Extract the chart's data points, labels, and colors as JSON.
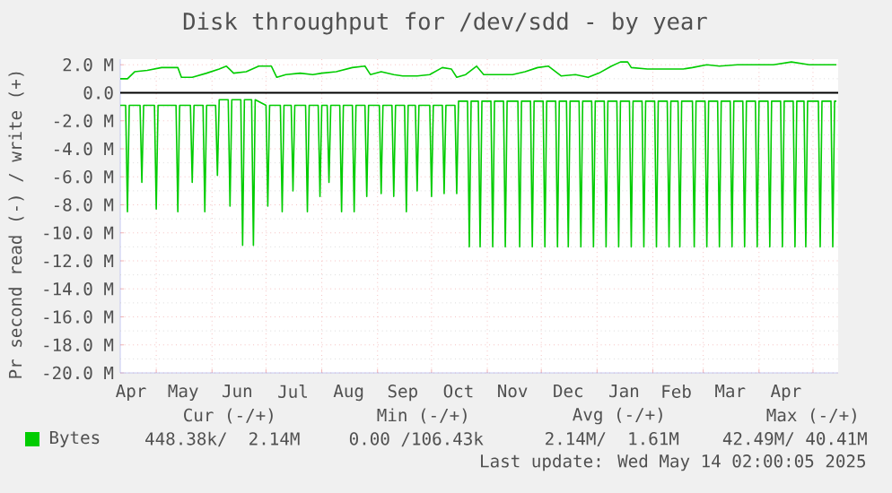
{
  "chart_data": {
    "type": "line",
    "title": "Disk throughput for /dev/sdd - by year",
    "ylabel": "Pr second read (-) / write (+)",
    "xlim": [
      "2024-04-11",
      "2025-05-15"
    ],
    "ylim": [
      -20,
      2.4
    ],
    "xticks": [
      {
        "value": "2024-05-01",
        "label": null
      },
      {
        "value": "2024-06-01",
        "label": null
      },
      {
        "value": "2024-07-01",
        "label": null
      },
      {
        "value": "2024-08-01",
        "label": null
      },
      {
        "value": "2024-09-01",
        "label": null
      },
      {
        "value": "2024-10-01",
        "label": null
      },
      {
        "value": "2024-11-01",
        "label": null
      },
      {
        "value": "2024-12-01",
        "label": null
      },
      {
        "value": "2025-01-01",
        "label": null
      },
      {
        "value": "2025-02-01",
        "label": null
      },
      {
        "value": "2025-03-01",
        "label": null
      },
      {
        "value": "2025-04-01",
        "label": null
      },
      {
        "value": "2025-05-01",
        "label": null
      },
      {
        "value": "2024-04-17",
        "label": "Apr"
      },
      {
        "value": "2024-05-16",
        "label": "May"
      },
      {
        "value": "2024-06-15",
        "label": "Jun"
      },
      {
        "value": "2024-07-16",
        "label": "Jul"
      },
      {
        "value": "2024-08-16",
        "label": "Aug"
      },
      {
        "value": "2024-09-15",
        "label": "Sep"
      },
      {
        "value": "2024-10-16",
        "label": "Oct"
      },
      {
        "value": "2024-11-15",
        "label": "Nov"
      },
      {
        "value": "2024-12-16",
        "label": "Dec"
      },
      {
        "value": "2025-01-16",
        "label": "Jan"
      },
      {
        "value": "2025-02-14",
        "label": "Feb"
      },
      {
        "value": "2025-03-16",
        "label": "Mar"
      },
      {
        "value": "2025-04-16",
        "label": "Apr"
      }
    ],
    "yticks": [
      {
        "value": -20,
        "label": "-20.0 M"
      },
      {
        "value": -18,
        "label": "-18.0 M"
      },
      {
        "value": -16,
        "label": "-16.0 M"
      },
      {
        "value": -14,
        "label": "-14.0 M"
      },
      {
        "value": -12,
        "label": "-12.0 M"
      },
      {
        "value": -10,
        "label": "-10.0 M"
      },
      {
        "value": -8,
        "label": "-8.0 M"
      },
      {
        "value": -6,
        "label": "-6.0 M"
      },
      {
        "value": -4,
        "label": "-4.0 M"
      },
      {
        "value": -2,
        "label": "-2.0 M"
      },
      {
        "value": 0,
        "label": "0.0"
      },
      {
        "value": 2,
        "label": "2.0 M"
      },
      {
        "value": -19,
        "label": null
      },
      {
        "value": -17,
        "label": null
      },
      {
        "value": -15,
        "label": null
      },
      {
        "value": -13,
        "label": null
      },
      {
        "value": -11,
        "label": null
      },
      {
        "value": -9,
        "label": null
      },
      {
        "value": -7,
        "label": null
      },
      {
        "value": -5,
        "label": null
      },
      {
        "value": -3,
        "label": null
      },
      {
        "value": -1,
        "label": null
      },
      {
        "value": 1,
        "label": null
      }
    ],
    "grid": true,
    "legend": "bottom left",
    "ref_lines": [
      {
        "axis": "y",
        "value": 0,
        "color": "#000000"
      }
    ],
    "series": [
      {
        "name": "Bytes",
        "color": "#00cc00",
        "x": [
          "2024-04-11",
          "2024-04-15",
          "2024-04-19",
          "2024-04-26",
          "2024-05-04",
          "2024-05-13",
          "2024-05-15",
          "2024-05-21",
          "2024-05-29",
          "2024-06-05",
          "2024-06-09",
          "2024-06-13",
          "2024-06-20",
          "2024-06-27",
          "2024-07-04",
          "2024-07-07",
          "2024-07-12",
          "2024-07-20",
          "2024-07-27",
          "2024-08-01",
          "2024-08-09",
          "2024-08-18",
          "2024-08-25",
          "2024-08-28",
          "2024-09-03",
          "2024-09-10",
          "2024-09-15",
          "2024-09-23",
          "2024-09-30",
          "2024-10-07",
          "2024-10-12",
          "2024-10-15",
          "2024-10-20",
          "2024-10-26",
          "2024-10-30",
          "2024-11-07",
          "2024-11-15",
          "2024-11-22",
          "2024-11-29",
          "2024-12-05",
          "2024-12-12",
          "2024-12-20",
          "2024-12-27",
          "2025-01-02",
          "2025-01-09",
          "2025-01-14",
          "2025-01-18",
          "2025-01-20",
          "2025-01-29",
          "2025-02-08",
          "2025-02-18",
          "2025-02-23",
          "2025-03-03",
          "2025-03-10",
          "2025-03-20",
          "2025-03-30",
          "2025-04-09",
          "2025-04-19",
          "2025-04-29",
          "2025-05-09",
          "2025-05-14"
        ],
        "values": [
          1.0,
          1.0,
          1.5,
          1.6,
          1.8,
          1.8,
          1.1,
          1.1,
          1.4,
          1.7,
          1.9,
          1.4,
          1.5,
          1.9,
          1.9,
          1.1,
          1.3,
          1.4,
          1.3,
          1.4,
          1.5,
          1.8,
          1.9,
          1.3,
          1.5,
          1.3,
          1.2,
          1.2,
          1.3,
          1.8,
          1.7,
          1.1,
          1.3,
          1.9,
          1.3,
          1.3,
          1.3,
          1.5,
          1.8,
          1.9,
          1.2,
          1.3,
          1.1,
          1.4,
          1.9,
          2.2,
          2.2,
          1.8,
          1.7,
          1.7,
          1.7,
          1.8,
          2.0,
          1.9,
          2.0,
          2.0,
          2.0,
          2.2,
          2.0,
          2.0,
          2.0
        ]
      },
      {
        "color": "#00cc00",
        "x": [
          "2024-04-11",
          "2024-04-14",
          "2024-04-15",
          "2024-04-16",
          "2024-04-22",
          "2024-04-23",
          "2024-04-24",
          "2024-04-30",
          "2024-05-01",
          "2024-05-02",
          "2024-05-12",
          "2024-05-13",
          "2024-05-14",
          "2024-05-20",
          "2024-05-21",
          "2024-05-22",
          "2024-05-27",
          "2024-05-28",
          "2024-05-29",
          "2024-06-03",
          "2024-06-04",
          "2024-06-05",
          "2024-06-10",
          "2024-06-11",
          "2024-06-12",
          "2024-06-17",
          "2024-06-18",
          "2024-06-19",
          "2024-06-23",
          "2024-06-24",
          "2024-06-25",
          "2024-07-01",
          "2024-07-02",
          "2024-07-03",
          "2024-07-09",
          "2024-07-10",
          "2024-07-11",
          "2024-07-15",
          "2024-07-16",
          "2024-07-17",
          "2024-07-23",
          "2024-07-24",
          "2024-07-25",
          "2024-07-30",
          "2024-07-31",
          "2024-08-01",
          "2024-08-04",
          "2024-08-05",
          "2024-08-06",
          "2024-08-11",
          "2024-08-12",
          "2024-08-13",
          "2024-08-18",
          "2024-08-19",
          "2024-08-20",
          "2024-08-25",
          "2024-08-26",
          "2024-08-27",
          "2024-09-02",
          "2024-09-03",
          "2024-09-04",
          "2024-09-09",
          "2024-09-10",
          "2024-09-11",
          "2024-09-16",
          "2024-09-17",
          "2024-09-18",
          "2024-09-22",
          "2024-09-23",
          "2024-09-24",
          "2024-09-30",
          "2024-10-01",
          "2024-10-02",
          "2024-10-07",
          "2024-10-08",
          "2024-10-09",
          "2024-10-14",
          "2024-10-15",
          "2024-10-16",
          "2024-10-21",
          "2024-10-22",
          "2024-10-23",
          "2024-10-27",
          "2024-10-28",
          "2024-10-29",
          "2024-11-03",
          "2024-11-04",
          "2024-11-05",
          "2024-11-10",
          "2024-11-11",
          "2024-11-12",
          "2024-11-18",
          "2024-11-19",
          "2024-11-20",
          "2024-11-25",
          "2024-11-26",
          "2024-11-27",
          "2024-12-02",
          "2024-12-03",
          "2024-12-04",
          "2024-12-09",
          "2024-12-10",
          "2024-12-11",
          "2024-12-15",
          "2024-12-16",
          "2024-12-17",
          "2024-12-22",
          "2024-12-23",
          "2024-12-24",
          "2024-12-29",
          "2024-12-30",
          "2024-12-31",
          "2025-01-05",
          "2025-01-06",
          "2025-01-07",
          "2025-01-12",
          "2025-01-13",
          "2025-01-14",
          "2025-01-19",
          "2025-01-20",
          "2025-01-21",
          "2025-01-26",
          "2025-01-27",
          "2025-01-28",
          "2025-02-02",
          "2025-02-03",
          "2025-02-04",
          "2025-02-09",
          "2025-02-10",
          "2025-02-11",
          "2025-02-15",
          "2025-02-16",
          "2025-02-17",
          "2025-02-23",
          "2025-02-24",
          "2025-02-25",
          "2025-03-02",
          "2025-03-03",
          "2025-03-04",
          "2025-03-09",
          "2025-03-10",
          "2025-03-11",
          "2025-03-16",
          "2025-03-17",
          "2025-03-18",
          "2025-03-23",
          "2025-03-24",
          "2025-03-25",
          "2025-03-30",
          "2025-03-31",
          "2025-04-01",
          "2025-04-06",
          "2025-04-07",
          "2025-04-08",
          "2025-04-13",
          "2025-04-14",
          "2025-04-15",
          "2025-04-20",
          "2025-04-21",
          "2025-04-22",
          "2025-04-26",
          "2025-04-27",
          "2025-04-28",
          "2025-05-04",
          "2025-05-05",
          "2025-05-06",
          "2025-05-11",
          "2025-05-12",
          "2025-05-13",
          "2025-05-14"
        ],
        "values": [
          -0.9,
          -0.9,
          -8.5,
          -0.9,
          -0.9,
          -6.4,
          -0.9,
          -0.9,
          -8.3,
          -0.9,
          -0.9,
          -8.5,
          -0.9,
          -0.9,
          -6.4,
          -0.9,
          -0.9,
          -8.5,
          -0.9,
          -0.9,
          -5.9,
          -0.5,
          -0.5,
          -8.1,
          -0.5,
          -0.5,
          -10.9,
          -0.5,
          -0.5,
          -10.9,
          -0.5,
          -0.9,
          -8.1,
          -0.9,
          -0.9,
          -8.5,
          -0.9,
          -0.9,
          -7.0,
          -0.9,
          -0.9,
          -8.5,
          -0.9,
          -0.9,
          -7.4,
          -0.9,
          -0.9,
          -6.4,
          -0.9,
          -0.9,
          -8.5,
          -0.9,
          -0.9,
          -8.5,
          -0.9,
          -0.9,
          -7.4,
          -0.9,
          -0.9,
          -7.2,
          -0.9,
          -0.9,
          -7.4,
          -0.9,
          -0.9,
          -8.5,
          -0.9,
          -0.9,
          -7.0,
          -0.9,
          -0.9,
          -7.4,
          -0.9,
          -0.9,
          -7.2,
          -0.9,
          -0.9,
          -7.2,
          -0.6,
          -0.6,
          -11.0,
          -0.6,
          -0.6,
          -11.0,
          -0.6,
          -0.6,
          -11.0,
          -0.6,
          -0.6,
          -11.0,
          -0.6,
          -0.6,
          -11.0,
          -0.6,
          -0.6,
          -11.0,
          -0.6,
          -0.6,
          -11.0,
          -0.6,
          -0.6,
          -11.0,
          -0.6,
          -0.6,
          -11.0,
          -0.6,
          -0.6,
          -11.0,
          -0.6,
          -0.6,
          -11.0,
          -0.6,
          -0.6,
          -11.0,
          -0.6,
          -0.6,
          -11.0,
          -0.6,
          -0.6,
          -11.0,
          -0.6,
          -0.6,
          -11.0,
          -0.6,
          -0.6,
          -11.0,
          -0.6,
          -0.6,
          -11.0,
          -0.6,
          -0.6,
          -11.0,
          -0.6,
          -0.6,
          -11.0,
          -0.6,
          -0.6,
          -11.0,
          -0.6,
          -0.6,
          -11.0,
          -0.6,
          -0.6,
          -11.0,
          -0.6,
          -0.6,
          -11.0,
          -0.6,
          -0.6,
          -11.0,
          -0.6,
          -0.6,
          -11.0,
          -0.6,
          -0.6,
          -11.0,
          -0.6,
          -0.6,
          -11.0,
          -0.6,
          -0.6,
          -11.0,
          -0.6,
          -0.6,
          -11.0,
          -0.6,
          -0.6,
          -11.0,
          -0.6,
          -0.6
        ]
      }
    ],
    "annotations": [
      "Cur (-/+)",
      "448.38k/  2.14M",
      "Min (-/+)",
      "0.00 /106.43k",
      "Avg (-/+)",
      "2.14M/  1.61M",
      "Max (-/+)",
      "42.49M/ 40.41M",
      "Last update: Wed May 14 02:00:05 2025"
    ]
  }
}
